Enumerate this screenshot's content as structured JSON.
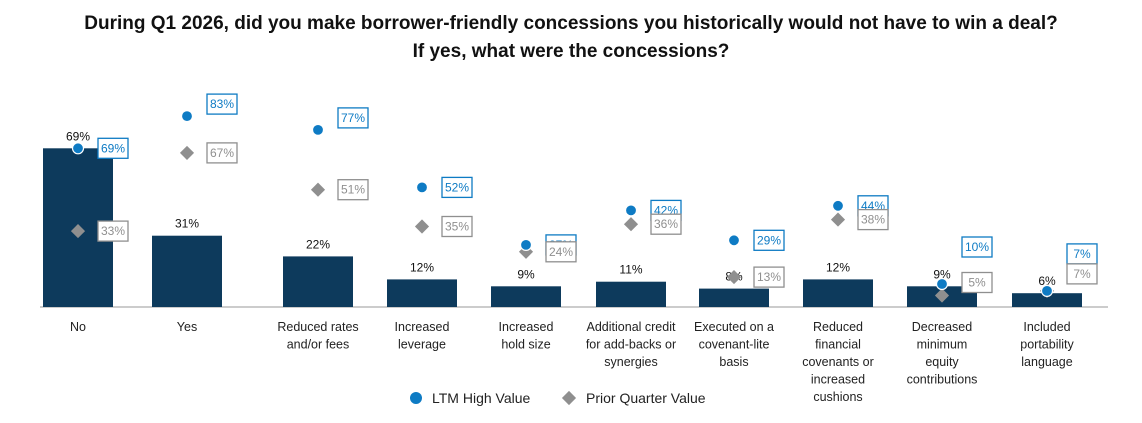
{
  "title_line1": "During Q1 2026, did you make borrower-friendly concessions you historically would not have to win a deal?",
  "title_line2": "If yes, what were the concessions?",
  "colors": {
    "bar": "#0d3a5c",
    "ltm": "#0e7bc4",
    "prior": "#8f8f8f",
    "axis": "#999999"
  },
  "chart_data": {
    "type": "bar",
    "title": "During Q1 2026, did you make borrower-friendly concessions you historically would not have to win a deal? If yes, what were the concessions?",
    "categories": [
      [
        "No"
      ],
      [
        "Yes"
      ],
      [
        "Reduced rates",
        "and/or fees"
      ],
      [
        "Increased",
        "leverage"
      ],
      [
        "Increased",
        "hold size"
      ],
      [
        "Additional credit",
        "for add-backs or",
        "synergies"
      ],
      [
        "Executed on a",
        "covenant-lite",
        "basis"
      ],
      [
        "Reduced",
        "financial",
        "covenants or",
        "increased",
        "cushions"
      ],
      [
        "Decreased",
        "minimum",
        "equity",
        "contributions"
      ],
      [
        "Included",
        "portability",
        "language"
      ]
    ],
    "values": [
      69,
      31,
      22,
      12,
      9,
      11,
      8,
      12,
      9,
      6
    ],
    "value_labels": [
      "69%",
      "31%",
      "22%",
      "12%",
      "9%",
      "11%",
      "8%",
      "12%",
      "9%",
      "6%"
    ],
    "series": [
      {
        "name": "LTM High Value",
        "marker": "circle",
        "values": [
          69,
          83,
          77,
          52,
          27,
          42,
          29,
          44,
          10,
          7
        ],
        "labels": [
          "69%",
          "83%",
          "77%",
          "52%",
          "27%",
          "42%",
          "29%",
          "44%",
          "10%",
          "7%"
        ]
      },
      {
        "name": "Prior Quarter Value",
        "marker": "diamond",
        "values": [
          33,
          67,
          51,
          35,
          24,
          36,
          13,
          38,
          5,
          7
        ],
        "labels": [
          "33%",
          "67%",
          "51%",
          "35%",
          "24%",
          "36%",
          "13%",
          "38%",
          "5%",
          "7%"
        ]
      }
    ],
    "ylim": [
      0,
      100
    ],
    "grid": false,
    "legend_position": "bottom"
  }
}
